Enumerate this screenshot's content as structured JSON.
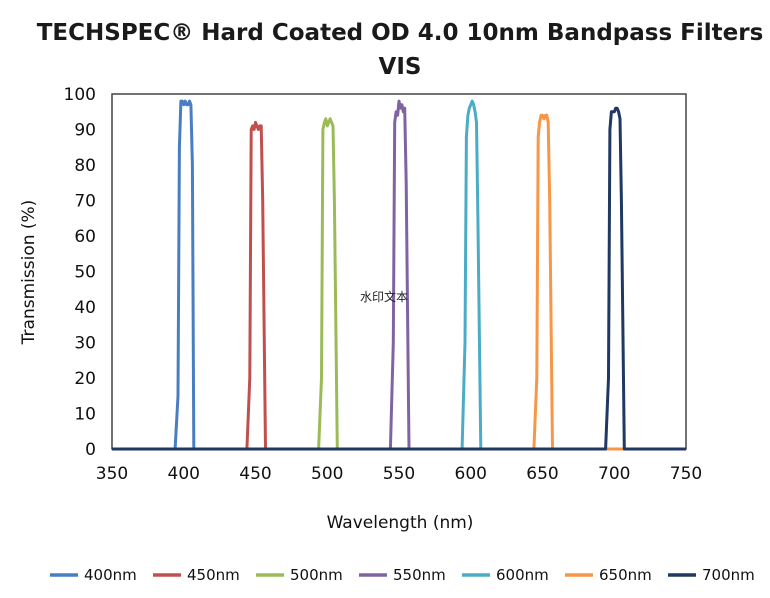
{
  "chart_data": {
    "type": "line",
    "title": "TECHSPEC® Hard Coated OD 4.0 10nm Bandpass Filters",
    "subtitle": "VIS",
    "xlabel": "Wavelength (nm)",
    "ylabel": "Transmission (%)",
    "xlim": [
      350,
      750
    ],
    "ylim": [
      0,
      100
    ],
    "xticks": [
      350,
      400,
      450,
      500,
      550,
      600,
      650,
      700,
      750
    ],
    "yticks": [
      0,
      10,
      20,
      30,
      40,
      50,
      60,
      70,
      80,
      90,
      100
    ],
    "grid": false,
    "legend_position": "bottom",
    "watermark": "水印文本",
    "series": [
      {
        "name": "400nm",
        "color": "#4a7ec2",
        "x": [
          350,
          394,
          396,
          397,
          398,
          399,
          400,
          401,
          402,
          403,
          404,
          405,
          406,
          407,
          750
        ],
        "y": [
          0,
          0,
          15,
          85,
          98,
          98,
          97,
          98,
          97,
          97,
          98,
          97,
          80,
          0,
          0
        ]
      },
      {
        "name": "450nm",
        "color": "#c0504d",
        "x": [
          350,
          444,
          446,
          447,
          448,
          449,
          450,
          451,
          452,
          453,
          454,
          455,
          457,
          750
        ],
        "y": [
          0,
          0,
          20,
          90,
          91,
          90,
          92,
          91,
          90,
          91,
          91,
          70,
          0,
          0
        ]
      },
      {
        "name": "500nm",
        "color": "#9bbb59",
        "x": [
          350,
          494,
          496,
          497,
          498,
          499,
          500,
          501,
          502,
          503,
          504,
          505,
          507,
          750
        ],
        "y": [
          0,
          0,
          20,
          90,
          92,
          93,
          91,
          92,
          93,
          92,
          91,
          70,
          0,
          0
        ]
      },
      {
        "name": "550nm",
        "color": "#8064a2",
        "x": [
          350,
          544,
          546,
          547,
          548,
          549,
          550,
          551,
          552,
          553,
          554,
          555,
          557,
          750
        ],
        "y": [
          0,
          0,
          30,
          92,
          95,
          94,
          98,
          96,
          97,
          95,
          96,
          75,
          0,
          0
        ]
      },
      {
        "name": "600nm",
        "color": "#4bacc6",
        "x": [
          350,
          594,
          596,
          597,
          598,
          599,
          600,
          601,
          602,
          603,
          604,
          605,
          607,
          750
        ],
        "y": [
          0,
          0,
          30,
          88,
          94,
          96,
          97,
          98,
          97,
          95,
          92,
          65,
          0,
          0
        ]
      },
      {
        "name": "650nm",
        "color": "#f79646",
        "x": [
          350,
          644,
          646,
          647,
          648,
          649,
          650,
          651,
          652,
          653,
          654,
          655,
          657,
          750
        ],
        "y": [
          0,
          0,
          20,
          88,
          92,
          94,
          94,
          93,
          94,
          94,
          92,
          70,
          0,
          0
        ]
      },
      {
        "name": "700nm",
        "color": "#1f3864",
        "x": [
          350,
          694,
          696,
          697,
          698,
          699,
          700,
          701,
          702,
          703,
          704,
          705,
          707,
          750
        ],
        "y": [
          0,
          0,
          20,
          90,
          95,
          95,
          95,
          96,
          96,
          95,
          93,
          70,
          0,
          0
        ]
      }
    ]
  }
}
